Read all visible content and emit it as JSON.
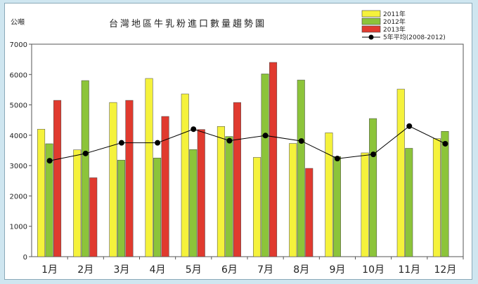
{
  "chart_data": {
    "type": "bar",
    "title": "台灣地區牛乳粉進口數量趨勢圖",
    "ylabel": "公噸",
    "xlabel": "",
    "ylim": [
      0,
      7000
    ],
    "yticks": [
      0,
      1000,
      2000,
      3000,
      4000,
      5000,
      6000,
      7000
    ],
    "categories": [
      "1月",
      "2月",
      "3月",
      "4月",
      "5月",
      "6月",
      "7月",
      "8月",
      "9月",
      "10月",
      "11月",
      "12月"
    ],
    "series": [
      {
        "name": "2011年",
        "type": "bar",
        "color": "#f5f23c",
        "values": [
          4200,
          3520,
          5080,
          5870,
          5360,
          4290,
          3270,
          3730,
          4080,
          3420,
          5520,
          3890
        ]
      },
      {
        "name": "2012年",
        "type": "bar",
        "color": "#8cc43a",
        "values": [
          3720,
          5800,
          3180,
          3250,
          3530,
          3960,
          6020,
          5820,
          3300,
          4550,
          3570,
          4130
        ]
      },
      {
        "name": "2013年",
        "type": "bar",
        "color": "#e03a2f",
        "values": [
          5150,
          2600,
          5150,
          4620,
          4190,
          5080,
          6400,
          2910,
          null,
          null,
          null,
          null
        ]
      },
      {
        "name": "5年平均(2008-2012)",
        "type": "line",
        "color": "#000000",
        "values": [
          3160,
          3400,
          3750,
          3750,
          4200,
          3820,
          3990,
          3810,
          3230,
          3370,
          4300,
          3720
        ]
      }
    ],
    "legend_position": "top-right",
    "grid": false
  }
}
